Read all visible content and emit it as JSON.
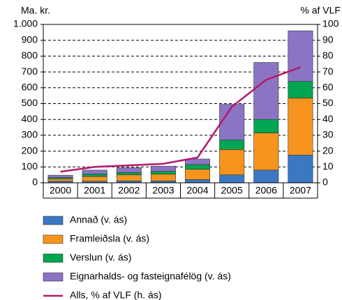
{
  "chart_data": {
    "type": "bar",
    "stacked": true,
    "y_label": "Ma. kr.",
    "y2_label": "% af VLF",
    "categories": [
      "2000",
      "2001",
      "2002",
      "2003",
      "2004",
      "2005",
      "2006",
      "2007"
    ],
    "series": [
      {
        "name": "Annað (v. ás)",
        "color": "#3a78c4",
        "values": [
          10,
          10,
          12,
          12,
          20,
          50,
          80,
          175
        ]
      },
      {
        "name": "Framleiðsla (v. ás)",
        "color": "#f7941d",
        "values": [
          15,
          30,
          38,
          42,
          65,
          160,
          235,
          360
        ]
      },
      {
        "name": "Verslun (v. ás)",
        "color": "#00a651",
        "values": [
          8,
          15,
          15,
          18,
          30,
          60,
          85,
          105
        ]
      },
      {
        "name": "Eignarhalds-  og fasteignafélög (v. ás)",
        "color": "#8b74c4",
        "values": [
          15,
          25,
          30,
          33,
          35,
          225,
          360,
          320
        ]
      },
      {
        "name": "Alls, % af VLF (h. ás)",
        "color": "#b5186b",
        "type": "line",
        "axis": "y2",
        "values": [
          7,
          10,
          11,
          12,
          16,
          48,
          65,
          73
        ]
      }
    ],
    "ylim": [
      0,
      1000
    ],
    "yticks": [
      0,
      100,
      200,
      300,
      400,
      500,
      600,
      700,
      800,
      900,
      {
        "value": 1000,
        "label": "1.000"
      }
    ],
    "y2lim": [
      0,
      100
    ],
    "y2ticks": [
      0,
      10,
      20,
      30,
      40,
      50,
      60,
      70,
      80,
      90,
      100
    ],
    "grid": true,
    "legend": "bottom"
  }
}
